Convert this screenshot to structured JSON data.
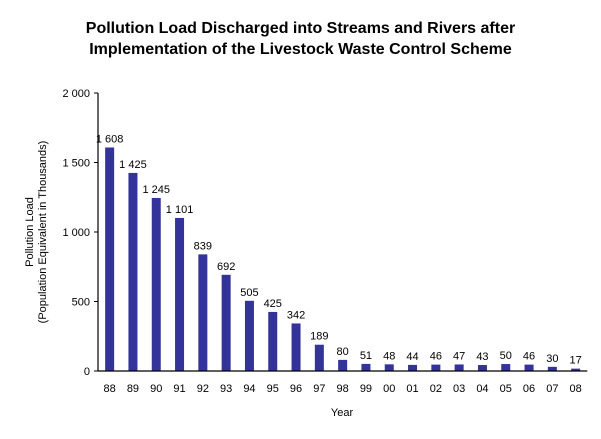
{
  "chart_data": {
    "type": "bar",
    "title": "Pollution Load Discharged into Streams and Rivers after Implementation of the Livestock Waste Control Scheme",
    "title_lines": [
      "Pollution Load Discharged into Streams and Rivers after",
      "Implementation of the Livestock Waste Control Scheme"
    ],
    "xlabel": "Year",
    "ylabel_lines": [
      "Pollution Load",
      "(Population Equivalent in Thousands)"
    ],
    "categories": [
      "88",
      "89",
      "90",
      "91",
      "92",
      "93",
      "94",
      "95",
      "96",
      "97",
      "98",
      "99",
      "00",
      "01",
      "02",
      "03",
      "04",
      "05",
      "06",
      "07",
      "08"
    ],
    "values": [
      1608,
      1425,
      1245,
      1101,
      839,
      692,
      505,
      425,
      342,
      189,
      80,
      51,
      48,
      44,
      46,
      47,
      43,
      50,
      46,
      30,
      17
    ],
    "data_labels": [
      "1 608",
      "1 425",
      "1 245",
      "1 101",
      "839",
      "692",
      "505",
      "425",
      "342",
      "189",
      "80",
      "51",
      "48",
      "44",
      "46",
      "47",
      "43",
      "50",
      "46",
      "30",
      "17"
    ],
    "ylim": [
      0,
      2000
    ],
    "yticks": [
      0,
      500,
      1000,
      1500,
      2000
    ],
    "ytick_labels": [
      "0",
      "500",
      "1 000",
      "1 500",
      "2 000"
    ],
    "grid": false,
    "legend": "none",
    "bar_color": "#333399"
  }
}
